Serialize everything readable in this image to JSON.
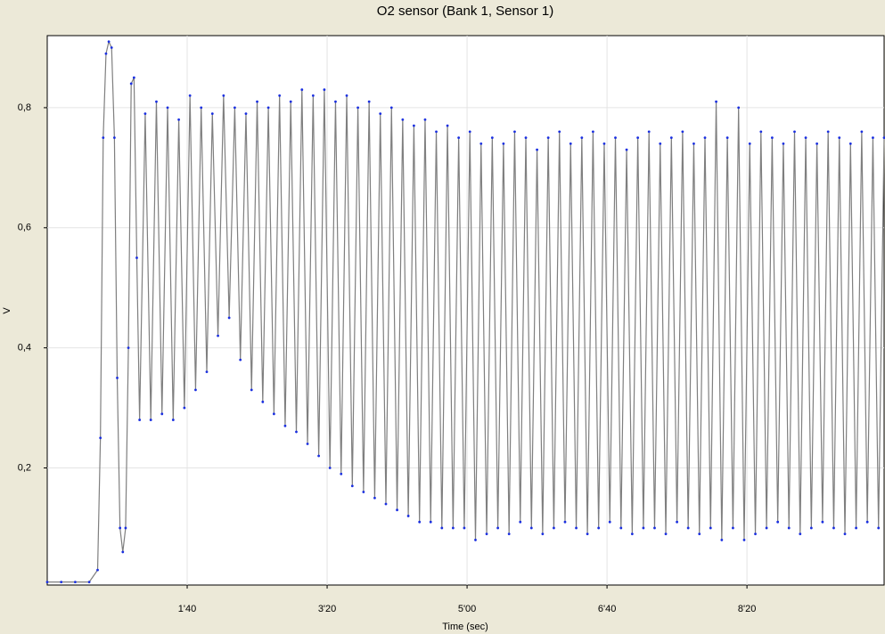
{
  "chart_data": {
    "type": "line",
    "title": "O2 sensor (Bank 1, Sensor 1)",
    "x_label": "Time (sec)",
    "y_label": "V",
    "xlim": [
      0,
      598
    ],
    "ylim": [
      0.005,
      0.92
    ],
    "xticks": [
      {
        "value": 100,
        "label": "1'40"
      },
      {
        "value": 200,
        "label": "3'20"
      },
      {
        "value": 300,
        "label": "5'00"
      },
      {
        "value": 400,
        "label": "6'40"
      },
      {
        "value": 500,
        "label": "8'20"
      }
    ],
    "yticks": [
      {
        "value": 0.2,
        "label": "0,2"
      },
      {
        "value": 0.4,
        "label": "0,4"
      },
      {
        "value": 0.6,
        "label": "0,6"
      },
      {
        "value": 0.8,
        "label": "0,8"
      }
    ],
    "grid": true,
    "series": [
      {
        "color": "#7f7f7f",
        "marker_color": "#1a2fe0",
        "x": [
          0,
          10,
          20,
          30,
          36,
          38,
          40,
          42,
          44,
          46,
          48,
          50,
          52,
          54,
          56,
          58,
          60,
          62,
          64,
          66,
          70,
          74,
          78,
          82,
          86,
          90,
          94,
          98,
          102,
          106,
          110,
          114,
          118,
          122,
          126,
          130,
          134,
          138,
          142,
          146,
          150,
          154,
          158,
          162,
          166,
          170,
          174,
          178,
          182,
          186,
          190,
          194,
          198,
          202,
          206,
          210,
          214,
          218,
          222,
          226,
          230,
          234,
          238,
          242,
          246,
          250,
          254,
          258,
          262,
          266,
          270,
          274,
          278,
          282,
          286,
          290,
          294,
          298,
          302,
          306,
          310,
          314,
          318,
          322,
          326,
          330,
          334,
          338,
          342,
          346,
          350,
          354,
          358,
          362,
          366,
          370,
          374,
          378,
          382,
          386,
          390,
          394,
          398,
          402,
          406,
          410,
          414,
          418,
          422,
          426,
          430,
          434,
          438,
          442,
          446,
          450,
          454,
          458,
          462,
          466,
          470,
          474,
          478,
          482,
          486,
          490,
          494,
          498,
          502,
          506,
          510,
          514,
          518,
          522,
          526,
          530,
          534,
          538,
          542,
          546,
          550,
          554,
          558,
          562,
          566,
          570,
          574,
          578,
          582,
          586,
          590,
          594,
          598
        ],
        "values": [
          0.01,
          0.01,
          0.01,
          0.01,
          0.03,
          0.25,
          0.75,
          0.89,
          0.91,
          0.9,
          0.75,
          0.35,
          0.1,
          0.06,
          0.1,
          0.4,
          0.84,
          0.85,
          0.55,
          0.28,
          0.79,
          0.28,
          0.81,
          0.29,
          0.8,
          0.28,
          0.78,
          0.3,
          0.82,
          0.33,
          0.8,
          0.36,
          0.79,
          0.42,
          0.82,
          0.45,
          0.8,
          0.38,
          0.79,
          0.33,
          0.81,
          0.31,
          0.8,
          0.29,
          0.82,
          0.27,
          0.81,
          0.26,
          0.83,
          0.24,
          0.82,
          0.22,
          0.83,
          0.2,
          0.81,
          0.19,
          0.82,
          0.17,
          0.8,
          0.16,
          0.81,
          0.15,
          0.79,
          0.14,
          0.8,
          0.13,
          0.78,
          0.12,
          0.77,
          0.11,
          0.78,
          0.11,
          0.76,
          0.1,
          0.77,
          0.1,
          0.75,
          0.1,
          0.76,
          0.08,
          0.74,
          0.09,
          0.75,
          0.1,
          0.74,
          0.09,
          0.76,
          0.11,
          0.75,
          0.1,
          0.73,
          0.09,
          0.75,
          0.1,
          0.76,
          0.11,
          0.74,
          0.1,
          0.75,
          0.09,
          0.76,
          0.1,
          0.74,
          0.11,
          0.75,
          0.1,
          0.73,
          0.09,
          0.75,
          0.1,
          0.76,
          0.1,
          0.74,
          0.09,
          0.75,
          0.11,
          0.76,
          0.1,
          0.74,
          0.09,
          0.75,
          0.1,
          0.81,
          0.08,
          0.75,
          0.1,
          0.8,
          0.08,
          0.74,
          0.09,
          0.76,
          0.1,
          0.75,
          0.11,
          0.74,
          0.1,
          0.76,
          0.09,
          0.75,
          0.1,
          0.74,
          0.11,
          0.76,
          0.1,
          0.75,
          0.09,
          0.74,
          0.1,
          0.76,
          0.11,
          0.75,
          0.1,
          0.75
        ]
      }
    ]
  }
}
